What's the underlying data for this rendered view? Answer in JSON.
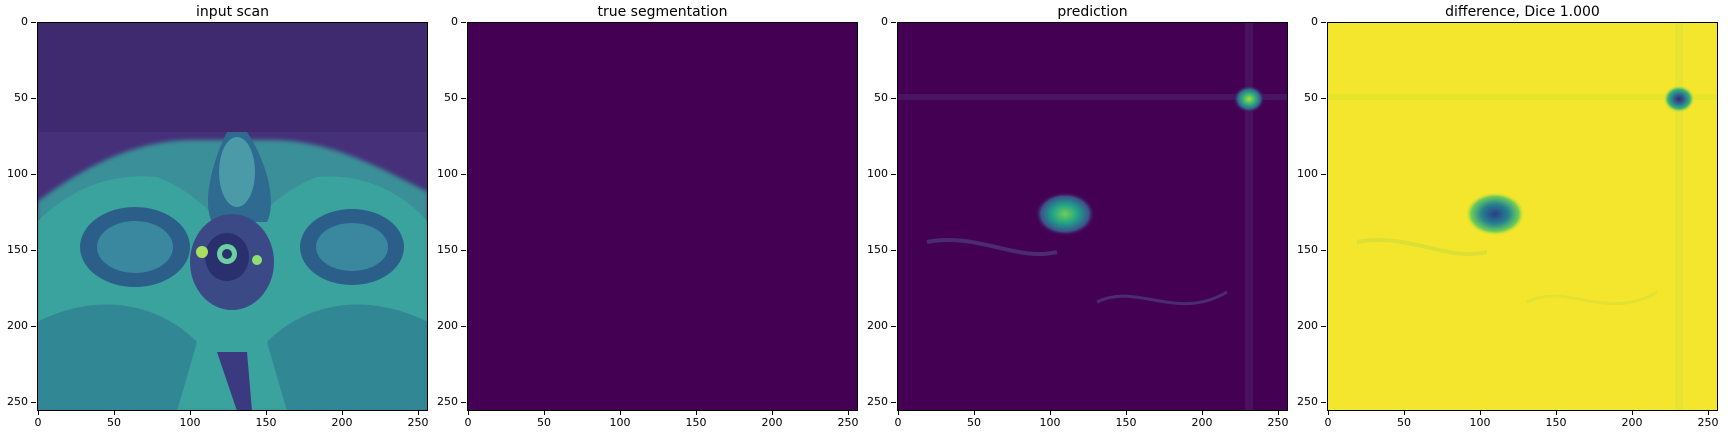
{
  "panels": [
    {
      "title": "input scan"
    },
    {
      "title": "true segmentation"
    },
    {
      "title": "prediction"
    },
    {
      "title": "difference, Dice 1.000"
    }
  ],
  "axes": {
    "y_ticks": [
      "0",
      "50",
      "100",
      "150",
      "200",
      "250"
    ],
    "x_ticks": [
      "0",
      "50",
      "100",
      "150",
      "200",
      "250"
    ]
  },
  "colors": {
    "viridis_dark": "#440154",
    "viridis_mid": "#21908d",
    "viridis_teal": "#35b779",
    "viridis_yellow": "#fde725"
  }
}
